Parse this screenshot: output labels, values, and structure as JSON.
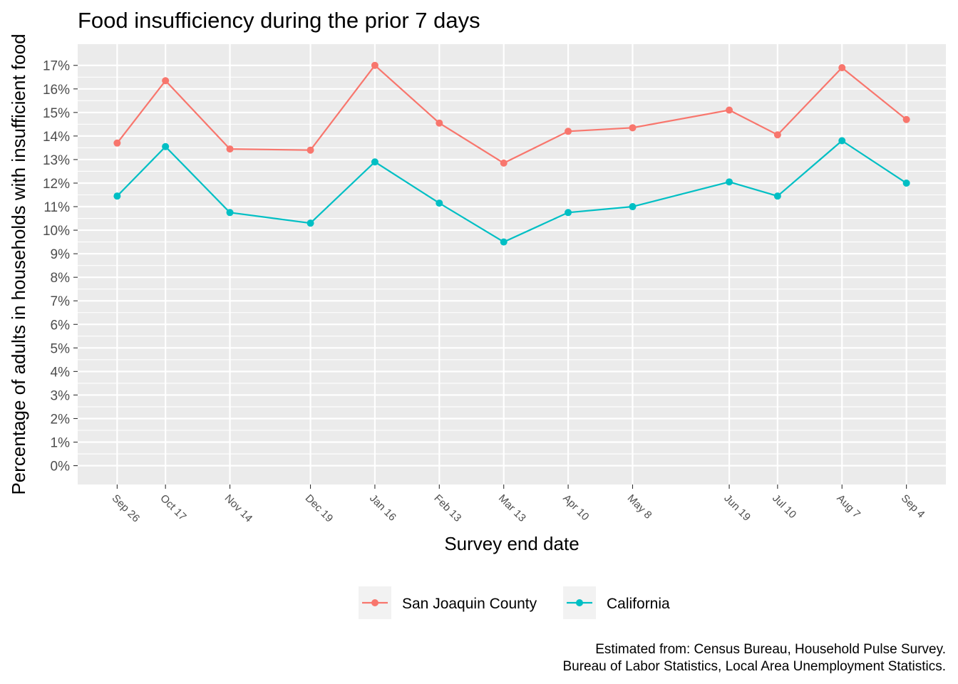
{
  "chart_data": {
    "type": "line",
    "title": "Food insufficiency during the prior 7 days",
    "xlabel": "Survey end date",
    "ylabel": "Percentage of adults in households with insufficient food",
    "x": [
      "2020-09-26",
      "2020-10-17",
      "2020-11-14",
      "2020-12-19",
      "2021-01-16",
      "2021-02-13",
      "2021-03-13",
      "2021-04-10",
      "2021-05-08",
      "2021-06-19",
      "2021-07-10",
      "2021-08-07",
      "2021-09-04"
    ],
    "x_tick_labels": [
      "Sep 26",
      "Oct 17",
      "Nov 14",
      "Dec 19",
      "Jan 16",
      "Feb 13",
      "Mar 13",
      "Apr 10",
      "May  8",
      "Jun 19",
      "Jul 10",
      "Aug  7",
      "Sep  4"
    ],
    "y_tick_labels": [
      "0%",
      "1%",
      "2%",
      "3%",
      "4%",
      "5%",
      "6%",
      "7%",
      "8%",
      "9%",
      "10%",
      "11%",
      "12%",
      "13%",
      "14%",
      "15%",
      "16%",
      "17%"
    ],
    "y_ticks": [
      0,
      1,
      2,
      3,
      4,
      5,
      6,
      7,
      8,
      9,
      10,
      11,
      12,
      13,
      14,
      15,
      16,
      17
    ],
    "ylim": [
      -0.8,
      17.9
    ],
    "grid": true,
    "legend_position": "bottom",
    "series": [
      {
        "name": "San Joaquin County",
        "color": "#F8766D",
        "values": [
          13.7,
          16.35,
          13.45,
          13.4,
          17.0,
          14.55,
          12.85,
          14.2,
          14.35,
          15.1,
          14.05,
          16.9,
          14.7
        ]
      },
      {
        "name": "California",
        "color": "#00BFC4",
        "values": [
          11.45,
          13.55,
          10.75,
          10.3,
          12.9,
          11.15,
          9.5,
          10.75,
          11.0,
          12.05,
          11.45,
          13.8,
          12.0
        ]
      }
    ],
    "caption_lines": [
      "Estimated from: Census Bureau, Household Pulse Survey.",
      "Bureau of Labor Statistics, Local Area Unemployment Statistics."
    ],
    "colors": {
      "panel_background": "#EBEBEB",
      "grid_line": "#FFFFFF",
      "axis_text": "#4D4D4D",
      "legend_key_background": "#F2F2F2"
    }
  }
}
